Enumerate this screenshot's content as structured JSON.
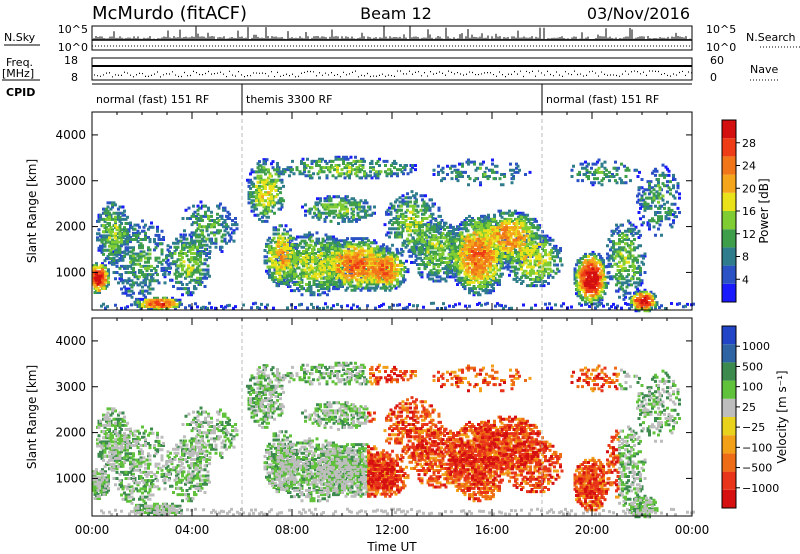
{
  "header": {
    "station": "McMurdo (fitACF)",
    "beam": "Beam 12",
    "date": "03/Nov/2016"
  },
  "strip_labels": {
    "nsky": "N.Sky",
    "nsky_ticks": [
      "10^5",
      "10^0"
    ],
    "nsearch": "N.Search",
    "nsearch_ticks": [
      "10^5",
      "10^0"
    ],
    "freq": "Freq.",
    "freq_unit": "[MHz]",
    "freq_ticks": [
      "18",
      "8"
    ],
    "nave": "Nave",
    "nave_ticks": [
      "60",
      "0"
    ],
    "cpid": "CPID"
  },
  "cpid_segments": [
    {
      "label": "normal (fast) 151 RF",
      "start_h": 0,
      "end_h": 6
    },
    {
      "label": "themis 3300 RF",
      "start_h": 6,
      "end_h": 18
    },
    {
      "label": "normal (fast) 151 RF",
      "start_h": 18,
      "end_h": 24
    }
  ],
  "chart_data": [
    {
      "type": "heatmap",
      "panel": "power",
      "xlabel": "",
      "ylabel": "Slant Range [km]",
      "xlim": [
        0,
        24
      ],
      "ylim": [
        180,
        4500
      ],
      "y_ticks": [
        "1000",
        "2000",
        "3000",
        "4000"
      ],
      "colorbar": {
        "label": "Power [dB]",
        "ticks": [
          "4",
          "8",
          "12",
          "16",
          "20",
          "24",
          "28"
        ],
        "colors": [
          "#1a1aff",
          "#2a52c4",
          "#2f7d8c",
          "#3e9e4a",
          "#7fcd33",
          "#e9e21a",
          "#f5a51c",
          "#f1761a",
          "#ee3c17",
          "#d40f0f"
        ]
      }
    },
    {
      "type": "heatmap",
      "panel": "velocity",
      "xlabel": "Time UT",
      "ylabel": "Slant Range [km]",
      "xlim": [
        0,
        24
      ],
      "ylim": [
        180,
        4500
      ],
      "x_ticks": [
        "00:00",
        "04:00",
        "08:00",
        "12:00",
        "16:00",
        "20:00",
        "00:00"
      ],
      "y_ticks": [
        "1000",
        "2000",
        "3000",
        "4000"
      ],
      "colorbar": {
        "label": "Velocity [m s⁻¹]",
        "ticks": [
          "1000",
          "500",
          "100",
          "25",
          "−25",
          "−100",
          "−500",
          "−1000"
        ],
        "colors": [
          "#2245c8",
          "#2e64a4",
          "#3d8a4e",
          "#5fc23a",
          "#bdbdbd",
          "#e8d21c",
          "#f1a018",
          "#ef6c16",
          "#e8341a",
          "#d60f10"
        ]
      }
    }
  ]
}
